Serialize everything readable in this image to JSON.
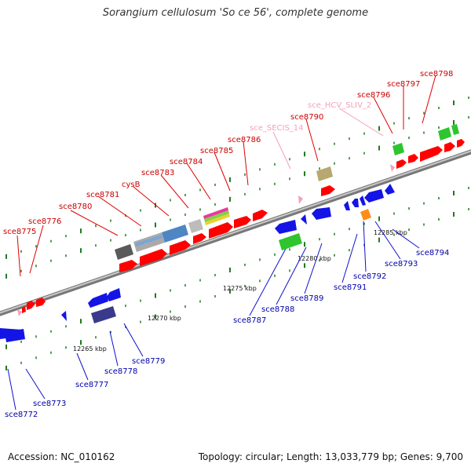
{
  "title": "Sorangium cellulosum 'So ce 56', complete genome",
  "accession": "Accession: NC_010162",
  "summary": "Topology: circular; Length: 13,033,779 bp; Genes: 9,700",
  "colors": {
    "forward_gene": "#ff0000",
    "reverse_gene": "#1a1aee",
    "forward_label": "#cc0000",
    "reverse_label": "#0000aa",
    "rna_label": "#f59fb8",
    "backbone": "#8c8c8c",
    "tick": "#1f7a1f"
  },
  "ruler": [
    {
      "label": "12265 kbp"
    },
    {
      "label": "12270 kbp"
    },
    {
      "label": "12275 kbp"
    },
    {
      "label": "12280 kbp"
    },
    {
      "label": "12285 kbp"
    }
  ],
  "labels_forward": [
    "sce8775",
    "sce8776",
    "sce8780",
    "sce8781",
    "cysB",
    "sce8783",
    "sce8784",
    "sce8785",
    "sce8786",
    "sce8790",
    "sce8796",
    "sce8797",
    "sce8798"
  ],
  "labels_rna": [
    "sce_SECIS_14",
    "sce_HCV_SLIV_2"
  ],
  "labels_reverse": [
    "sce8772",
    "sce8773",
    "sce8777",
    "sce8778",
    "sce8779",
    "sce8787",
    "sce8788",
    "sce8789",
    "sce8791",
    "sce8792",
    "sce8793",
    "sce8794"
  ]
}
